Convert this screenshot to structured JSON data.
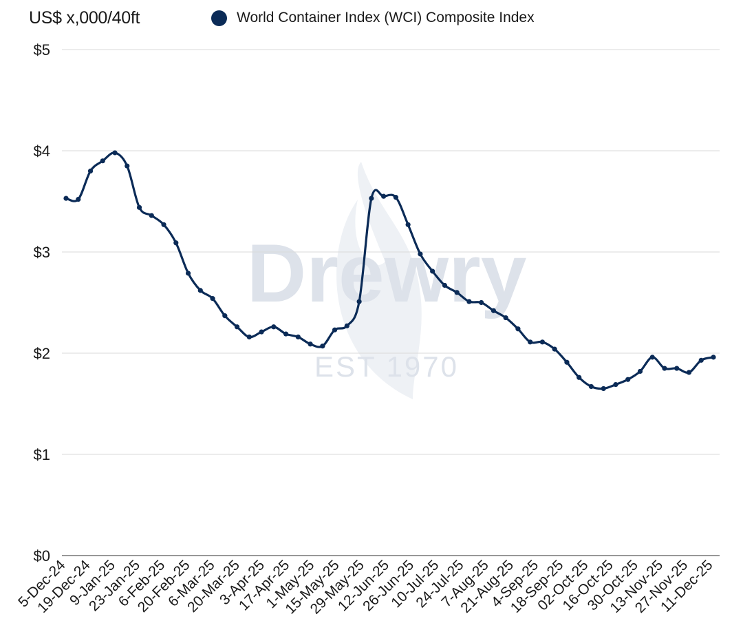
{
  "header": {
    "unit_label": "US$ x,000/40ft",
    "legend_label": "World Container Index (WCI) Composite Index"
  },
  "watermark": {
    "brand": "Drewry",
    "established": "EST 1970"
  },
  "colors": {
    "series": "#0b2b57",
    "grid": "#d9d9d9",
    "axis": "#595959",
    "text": "#1a1a1a",
    "watermark": "#dde2ea"
  },
  "chart_data": {
    "type": "line",
    "title": "",
    "xlabel": "",
    "ylabel": "US$ x,000/40ft",
    "ylim": [
      0,
      5
    ],
    "y_ticks": [
      0,
      1,
      2,
      3,
      4,
      5
    ],
    "y_tick_labels": [
      "$0",
      "$1",
      "$2",
      "$3",
      "$4",
      "$5"
    ],
    "grid": true,
    "legend_position": "top",
    "x_tick_labels": [
      "5-Dec-24",
      "19-Dec-24",
      "9-Jan-25",
      "23-Jan-25",
      "6-Feb-25",
      "20-Feb-25",
      "6-Mar-25",
      "20-Mar-25",
      "3-Apr-25",
      "17-Apr-25",
      "1-May-25",
      "15-May-25",
      "29-May-25",
      "12-Jun-25",
      "26-Jun-25",
      "10-Jul-25",
      "24-Jul-25",
      "7-Aug-25",
      "21-Aug-25",
      "4-Sep-25",
      "18-Sep-25",
      "02-Oct-25",
      "16-Oct-25",
      "30-Oct-25",
      "13-Nov-25",
      "27-Nov-25",
      "11-Dec-25"
    ],
    "series": [
      {
        "name": "World Container Index (WCI) Composite Index",
        "values": [
          3.53,
          3.52,
          3.8,
          3.9,
          3.98,
          3.85,
          3.44,
          3.36,
          3.27,
          3.09,
          2.79,
          2.62,
          2.54,
          2.37,
          2.26,
          2.16,
          2.21,
          2.26,
          2.19,
          2.16,
          2.09,
          2.07,
          2.23,
          2.27,
          2.51,
          3.53,
          3.55,
          3.54,
          3.27,
          2.98,
          2.81,
          2.67,
          2.6,
          2.51,
          2.5,
          2.42,
          2.35,
          2.24,
          2.11,
          2.11,
          2.04,
          1.91,
          1.76,
          1.67,
          1.65,
          1.69,
          1.74,
          1.82,
          1.96,
          1.85,
          1.85,
          1.81,
          1.93,
          1.96
        ]
      }
    ]
  }
}
